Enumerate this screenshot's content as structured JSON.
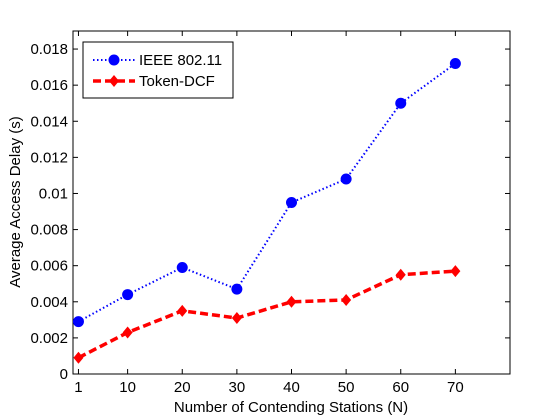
{
  "chart_data": {
    "type": "line",
    "xlabel": "Number of Contending Stations (N)",
    "ylabel": "Average Access Delay (s)",
    "x": [
      1,
      10,
      20,
      30,
      40,
      50,
      60,
      70
    ],
    "xticks": [
      "1",
      "10",
      "20",
      "30",
      "40",
      "50",
      "60",
      "70"
    ],
    "xlim": [
      0,
      80
    ],
    "yticks": [
      "0",
      "0.002",
      "0.004",
      "0.006",
      "0.008",
      "0.01",
      "0.012",
      "0.014",
      "0.016",
      "0.018"
    ],
    "ylim": [
      0,
      0.019
    ],
    "grid": false,
    "legend_position": "top-left",
    "series": [
      {
        "name": "IEEE 802.11",
        "color": "#0000ff",
        "line_style": "dotted",
        "marker": "circle",
        "values": [
          0.0029,
          0.0044,
          0.0059,
          0.0047,
          0.0095,
          0.0108,
          0.015,
          0.0172
        ]
      },
      {
        "name": "Token-DCF",
        "color": "#ff0000",
        "line_style": "dashed",
        "marker": "diamond",
        "values": [
          0.0009,
          0.0023,
          0.0035,
          0.0031,
          0.004,
          0.0041,
          0.0055,
          0.0057
        ]
      }
    ]
  }
}
